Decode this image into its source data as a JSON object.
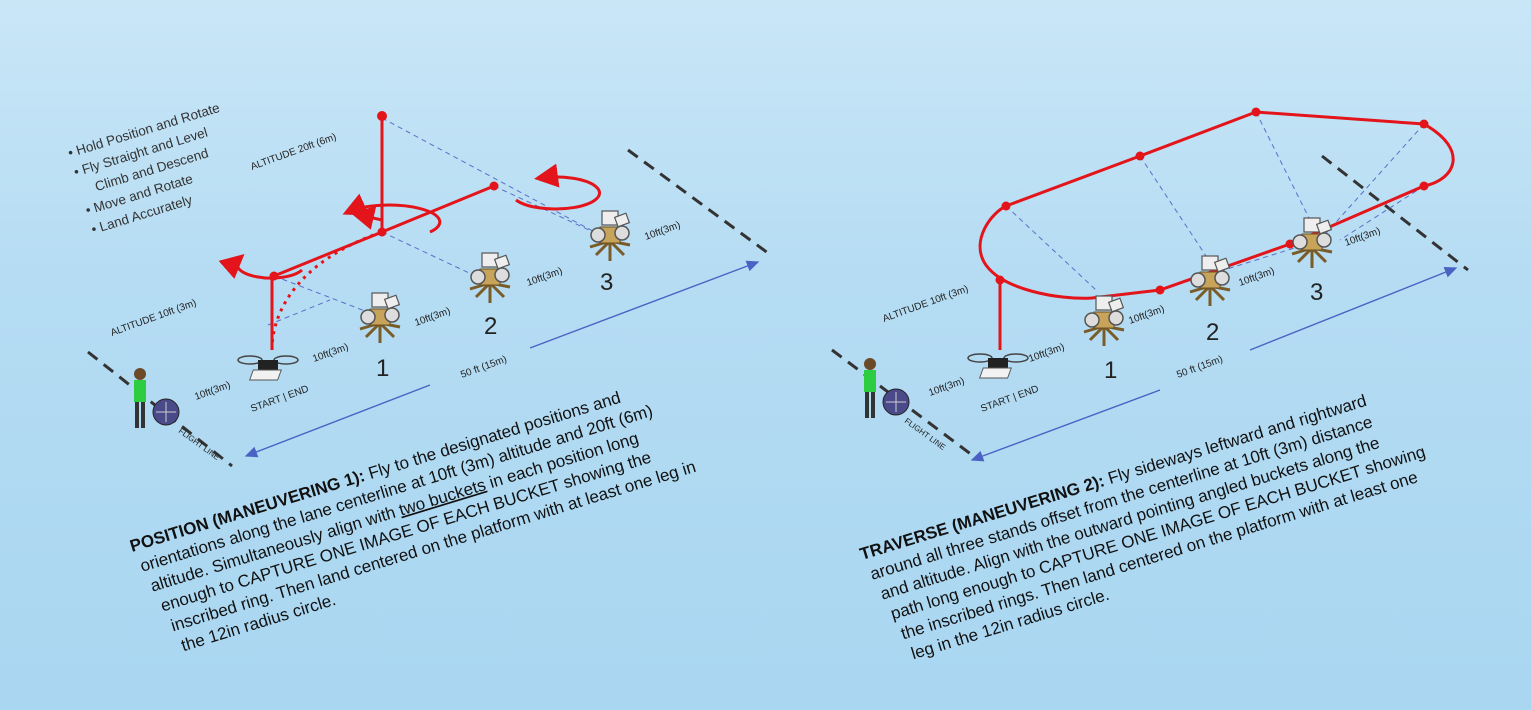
{
  "left_panel": {
    "bullets": [
      "Hold Position and Rotate",
      "Fly Straight and Level",
      "Climb and Descend",
      "Move and Rotate",
      "Land Accurately"
    ],
    "altitude_20": "ALTITUDE 20ft (6m)",
    "altitude_10": "ALTITUDE 10ft (3m)",
    "dist_1": "10ft(3m)",
    "dist_2": "10ft(3m)",
    "dist_3": "10ft(3m)",
    "dist_4": "10ft(3m)",
    "dist_5": "10ft(3m)",
    "dist_6": "10ft(3m)",
    "length": "50 ft (15m)",
    "start_end": "START | END",
    "flight_line": "FLIGHT LINE",
    "station_1": "1",
    "station_2": "2",
    "station_3": "3",
    "para_title": "POSITION (MANEUVERING 1):",
    "para_line1": " Fly to the designated positions and",
    "para_line2": "orientations along the lane centerline at 10ft (3m) altitude and 20ft (6m)",
    "para_line3a": "altitude. Simultaneously align with ",
    "para_line3b": "two buckets",
    "para_line3c": " in each position long",
    "para_line4": "enough to CAPTURE ONE IMAGE OF EACH BUCKET showing the",
    "para_line5": "inscribed ring. Then land centered on the platform with at least one leg in",
    "para_line6": "the 12in radius circle."
  },
  "right_panel": {
    "altitude_10": "ALTITUDE 10ft (3m)",
    "dist_1": "10ft(3m)",
    "dist_2": "10ft(3m)",
    "dist_3": "10ft(3m)",
    "dist_4": "10ft(3m)",
    "dist_5": "10ft(3m)",
    "dist_6": "10ft(3m)",
    "length": "50 ft (15m)",
    "start_end": "START | END",
    "flight_line": "FLIGHT LINE",
    "station_1": "1",
    "station_2": "2",
    "station_3": "3",
    "para_title": "TRAVERSE (MANEUVERING 2):",
    "para_line1": " Fly sideways leftward and rightward",
    "para_line2": "around all three stands offset from the centerline at 10ft (3m) distance",
    "para_line3": "and altitude. Align with the outward pointing angled buckets along the",
    "para_line4": "path long enough to CAPTURE ONE IMAGE OF EACH BUCKET showing",
    "para_line5": "the inscribed rings. Then land centered on the platform with at least one",
    "para_line6": "leg in the 12in radius circle."
  },
  "colors": {
    "path": "#e4141b",
    "arrow": "#4a62c4",
    "background": "#b5dcf3"
  }
}
